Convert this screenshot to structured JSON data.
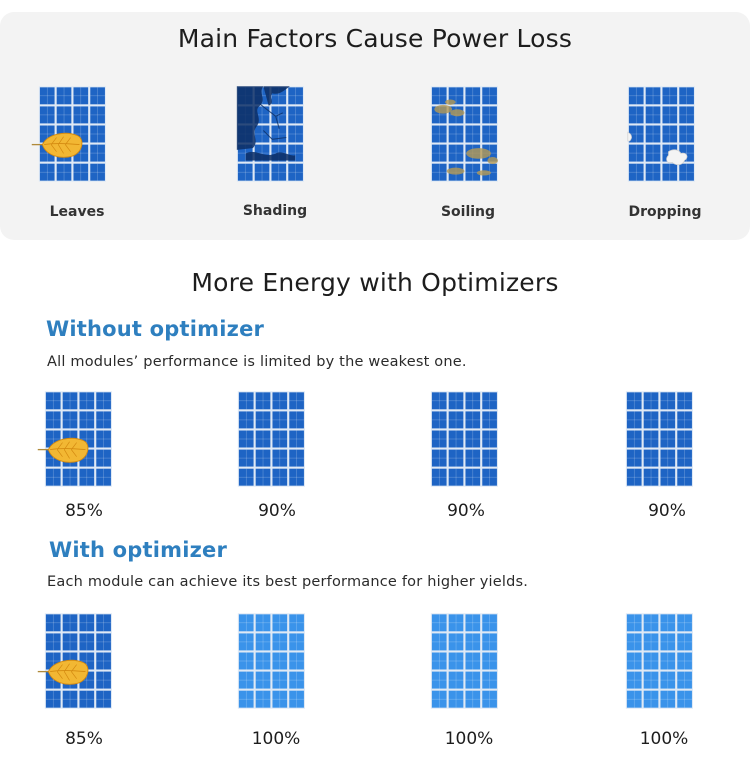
{
  "factors": {
    "title": "Main Factors Cause Power Loss",
    "items": [
      {
        "label": "Leaves",
        "icon": "panel-with-leaf-icon"
      },
      {
        "label": "Shading",
        "icon": "panel-with-shade-icon"
      },
      {
        "label": "Soiling",
        "icon": "panel-with-soiling-icon"
      },
      {
        "label": "Dropping",
        "icon": "panel-with-dropping-icon"
      }
    ]
  },
  "energy": {
    "title": "More Energy with Optimizers",
    "without": {
      "heading": "Without optimizer",
      "description": "All modules’ performance is limited by the weakest one.",
      "values": [
        "85%",
        "90%",
        "90%",
        "90%"
      ]
    },
    "with": {
      "heading": "With optimizer",
      "description": "Each module can achieve its best performance for higher yields.",
      "values": [
        "85%",
        "100%",
        "100%",
        "100%"
      ]
    }
  },
  "colors": {
    "panel_dark": "#1e64c4",
    "panel_bright": "#3a93ea",
    "section_heading": "#2e7fbf",
    "card_background": "#f3f3f3",
    "leaf": "#f2b733"
  }
}
